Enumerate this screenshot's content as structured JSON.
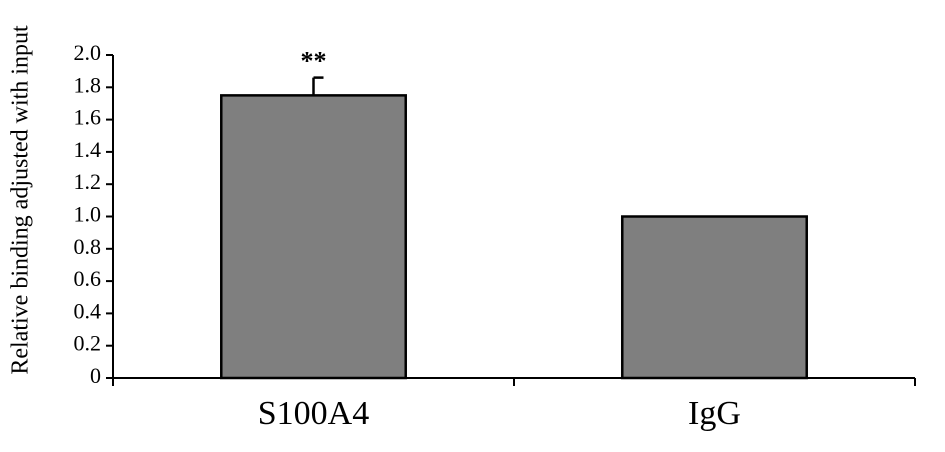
{
  "chart_data": {
    "type": "bar",
    "y_label": "Relative binding adjusted with input",
    "categories": [
      "S100A4",
      "IgG"
    ],
    "values": [
      1.75,
      1.0
    ],
    "errors": [
      0.11,
      null
    ],
    "annotations": [
      "**",
      null
    ],
    "color": "#7f7f7f",
    "ylim": [
      0,
      2.0
    ],
    "yticks": [
      0,
      0.2,
      0.4,
      0.6,
      0.8,
      {
        "value": 1.0,
        "label": "1.0"
      },
      1.2,
      1.4,
      1.6,
      1.8,
      {
        "value": 2.0,
        "label": "2.0"
      }
    ]
  }
}
